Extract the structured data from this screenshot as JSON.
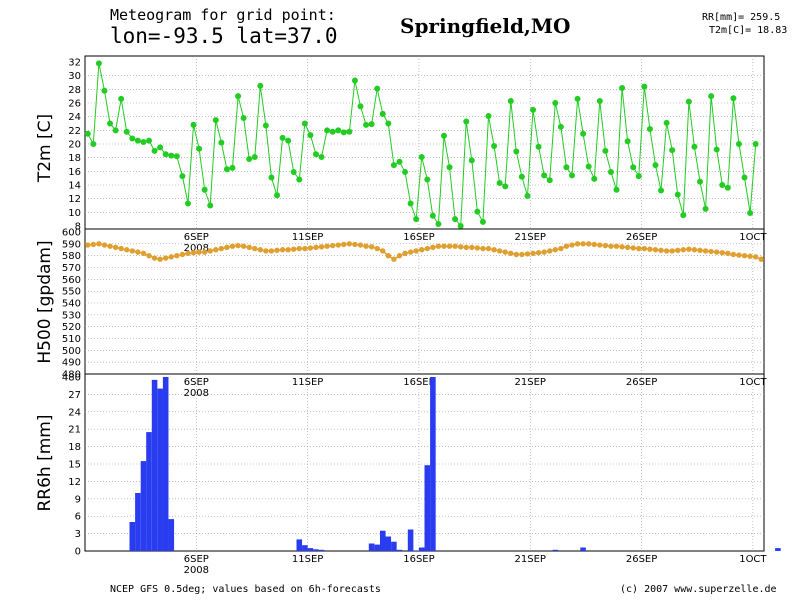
{
  "header": {
    "line1": "Meteogram for grid point:",
    "line2": "lon=-93.5 lat=37.0",
    "location": "Springfield,MO",
    "rr_summary": "RR[mm]= 259.5",
    "t2m_summary": "T2m[C]= 18.83"
  },
  "footer": {
    "left": "NCEP GFS 0.5deg; values based on 6h-forecasts",
    "right": "(c) 2007 www.superzelle.de"
  },
  "colors": {
    "t2m": "#22cc22",
    "h500": "#e0a030",
    "rr6h": "#2a3cf0",
    "grid": "#9a9a9a"
  },
  "chart_data": [
    {
      "type": "line",
      "name": "t2m",
      "ylabel": "T2m [C]",
      "ylim": [
        8,
        32
      ],
      "yticks": [
        "8",
        "10",
        "12",
        "14",
        "16",
        "18",
        "20",
        "22",
        "24",
        "26",
        "28",
        "30",
        "32"
      ],
      "grid": true,
      "x_start": "2008-09-01 00Z",
      "x_step_hours": 6,
      "x_tick_labels": [
        "6SEP",
        "11SEP",
        "16SEP",
        "21SEP",
        "26SEP",
        "1OCT"
      ],
      "x_tick_index": [
        20,
        40,
        60,
        80,
        100,
        120
      ],
      "x_sublabel": "2008",
      "values": [
        21.5,
        20.0,
        31.8,
        27.8,
        23.0,
        22.0,
        26.6,
        21.8,
        20.8,
        20.5,
        20.3,
        20.5,
        19.0,
        19.5,
        18.5,
        18.3,
        18.2,
        15.3,
        11.3,
        22.8,
        19.3,
        13.3,
        11.0,
        23.5,
        20.2,
        16.3,
        16.5,
        27.0,
        23.8,
        17.8,
        18.1,
        28.5,
        22.7,
        15.1,
        12.5,
        20.9,
        20.5,
        15.9,
        14.8,
        23.0,
        21.3,
        18.5,
        18.1,
        22.0,
        21.8,
        22.0,
        21.7,
        21.8,
        29.3,
        25.5,
        22.8,
        22.9,
        28.1,
        24.4,
        23.0,
        16.9,
        17.4,
        15.9,
        11.3,
        9.0,
        18.1,
        14.8,
        9.5,
        8.3,
        21.2,
        16.6,
        9.0,
        8.0,
        23.3,
        17.6,
        10.1,
        8.6,
        24.1,
        19.7,
        14.3,
        13.8,
        26.3,
        18.9,
        15.2,
        12.4,
        25.0,
        19.6,
        15.4,
        14.7,
        26.0,
        22.5,
        16.6,
        15.4,
        26.6,
        21.5,
        16.7,
        14.9,
        26.3,
        19.0,
        15.9,
        13.3,
        28.2,
        20.4,
        16.6,
        15.3,
        28.4,
        22.2,
        16.9,
        13.2,
        23.1,
        19.1,
        12.6,
        9.6,
        26.2,
        19.6,
        14.5,
        10.5,
        27.0,
        19.2,
        14.0,
        13.6,
        26.7,
        20.0,
        15.1,
        9.9,
        20.0,
        null
      ]
    },
    {
      "type": "line",
      "name": "h500",
      "ylabel": "H500 [gpdam]",
      "ylim": [
        480,
        600
      ],
      "yticks": [
        "480",
        "490",
        "500",
        "510",
        "520",
        "530",
        "540",
        "550",
        "560",
        "570",
        "580",
        "590",
        "600"
      ],
      "grid": true,
      "x_start": "2008-09-01 00Z",
      "x_step_hours": 6,
      "x_tick_labels": [
        "6SEP",
        "11SEP",
        "16SEP",
        "21SEP",
        "26SEP",
        "1OCT"
      ],
      "x_tick_index": [
        20,
        40,
        60,
        80,
        100,
        120
      ],
      "x_sublabel": "2008",
      "values": [
        589.0,
        589.5,
        590.0,
        589.0,
        588.0,
        587.0,
        586.0,
        585.0,
        584.0,
        583.0,
        582.0,
        580.0,
        578.0,
        577.0,
        578.0,
        579.0,
        580.0,
        581.0,
        582.0,
        582.5,
        583.0,
        583.0,
        584.0,
        585.0,
        586.0,
        587.0,
        588.0,
        588.5,
        588.0,
        587.0,
        586.0,
        585.0,
        584.0,
        584.0,
        584.5,
        585.0,
        585.0,
        585.5,
        586.0,
        586.0,
        586.5,
        587.0,
        587.5,
        588.0,
        588.5,
        589.0,
        589.5,
        590.0,
        589.5,
        589.0,
        588.0,
        587.5,
        586.0,
        584.0,
        580.0,
        577.0,
        580.0,
        582.0,
        583.0,
        584.0,
        585.0,
        586.0,
        587.0,
        588.0,
        588.0,
        588.0,
        588.0,
        587.5,
        587.0,
        587.0,
        586.5,
        586.0,
        586.0,
        585.0,
        584.0,
        583.0,
        582.0,
        581.0,
        581.0,
        581.5,
        582.0,
        582.5,
        583.0,
        584.0,
        585.0,
        586.0,
        588.0,
        589.0,
        590.0,
        590.0,
        590.0,
        589.5,
        589.0,
        588.5,
        588.0,
        588.0,
        587.5,
        587.0,
        586.5,
        586.0,
        586.0,
        585.5,
        585.0,
        584.5,
        584.0,
        584.0,
        584.5,
        585.0,
        585.5,
        585.0,
        584.5,
        584.0,
        583.5,
        583.0,
        582.5,
        582.0,
        581.0,
        580.5,
        580.0,
        579.5,
        579.0,
        577.0
      ]
    },
    {
      "type": "bar",
      "name": "rr6h",
      "ylabel": "RR6h [mm]",
      "ylim": [
        0,
        30
      ],
      "yticks": [
        "0",
        "3",
        "6",
        "9",
        "12",
        "15",
        "18",
        "21",
        "24",
        "27",
        "30"
      ],
      "y_top_label": "480",
      "grid": true,
      "x_start": "2008-09-01 00Z",
      "x_step_hours": 6,
      "x_tick_labels": [
        "6SEP",
        "11SEP",
        "16SEP",
        "21SEP",
        "26SEP",
        "1OCT"
      ],
      "x_tick_index": [
        20,
        40,
        60,
        80,
        100,
        120
      ],
      "x_sublabel": "2008",
      "values": [
        0,
        0,
        0,
        0,
        0,
        0,
        0,
        0,
        5.0,
        10.0,
        15.5,
        20.5,
        29.5,
        28.0,
        30.0,
        5.5,
        0,
        0,
        0,
        0,
        0,
        0,
        0,
        0,
        0,
        0,
        0,
        0,
        0,
        0,
        0,
        0,
        0,
        0,
        0,
        0,
        0,
        0,
        2.0,
        1.0,
        0.5,
        0.3,
        0.2,
        0,
        0,
        0,
        0,
        0,
        0,
        0,
        0,
        1.3,
        1.1,
        3.5,
        2.5,
        1.6,
        0.2,
        0,
        3.7,
        0.1,
        0.6,
        14.8,
        30.0,
        0,
        0,
        0,
        0,
        0,
        0,
        0,
        0,
        0,
        0,
        0,
        0,
        0,
        0,
        0,
        0,
        0,
        0,
        0,
        0,
        0,
        0.2,
        0,
        0,
        0,
        0,
        0.6,
        0,
        0,
        0,
        0,
        0,
        0,
        0,
        0,
        0,
        0,
        0,
        0,
        0,
        0,
        0,
        0,
        0,
        0,
        0,
        0,
        0,
        0,
        0,
        0,
        0,
        0,
        0,
        0,
        0,
        0,
        0,
        0,
        0,
        0,
        0.5,
        0,
        0,
        0,
        0,
        0,
        0,
        0
      ]
    }
  ]
}
